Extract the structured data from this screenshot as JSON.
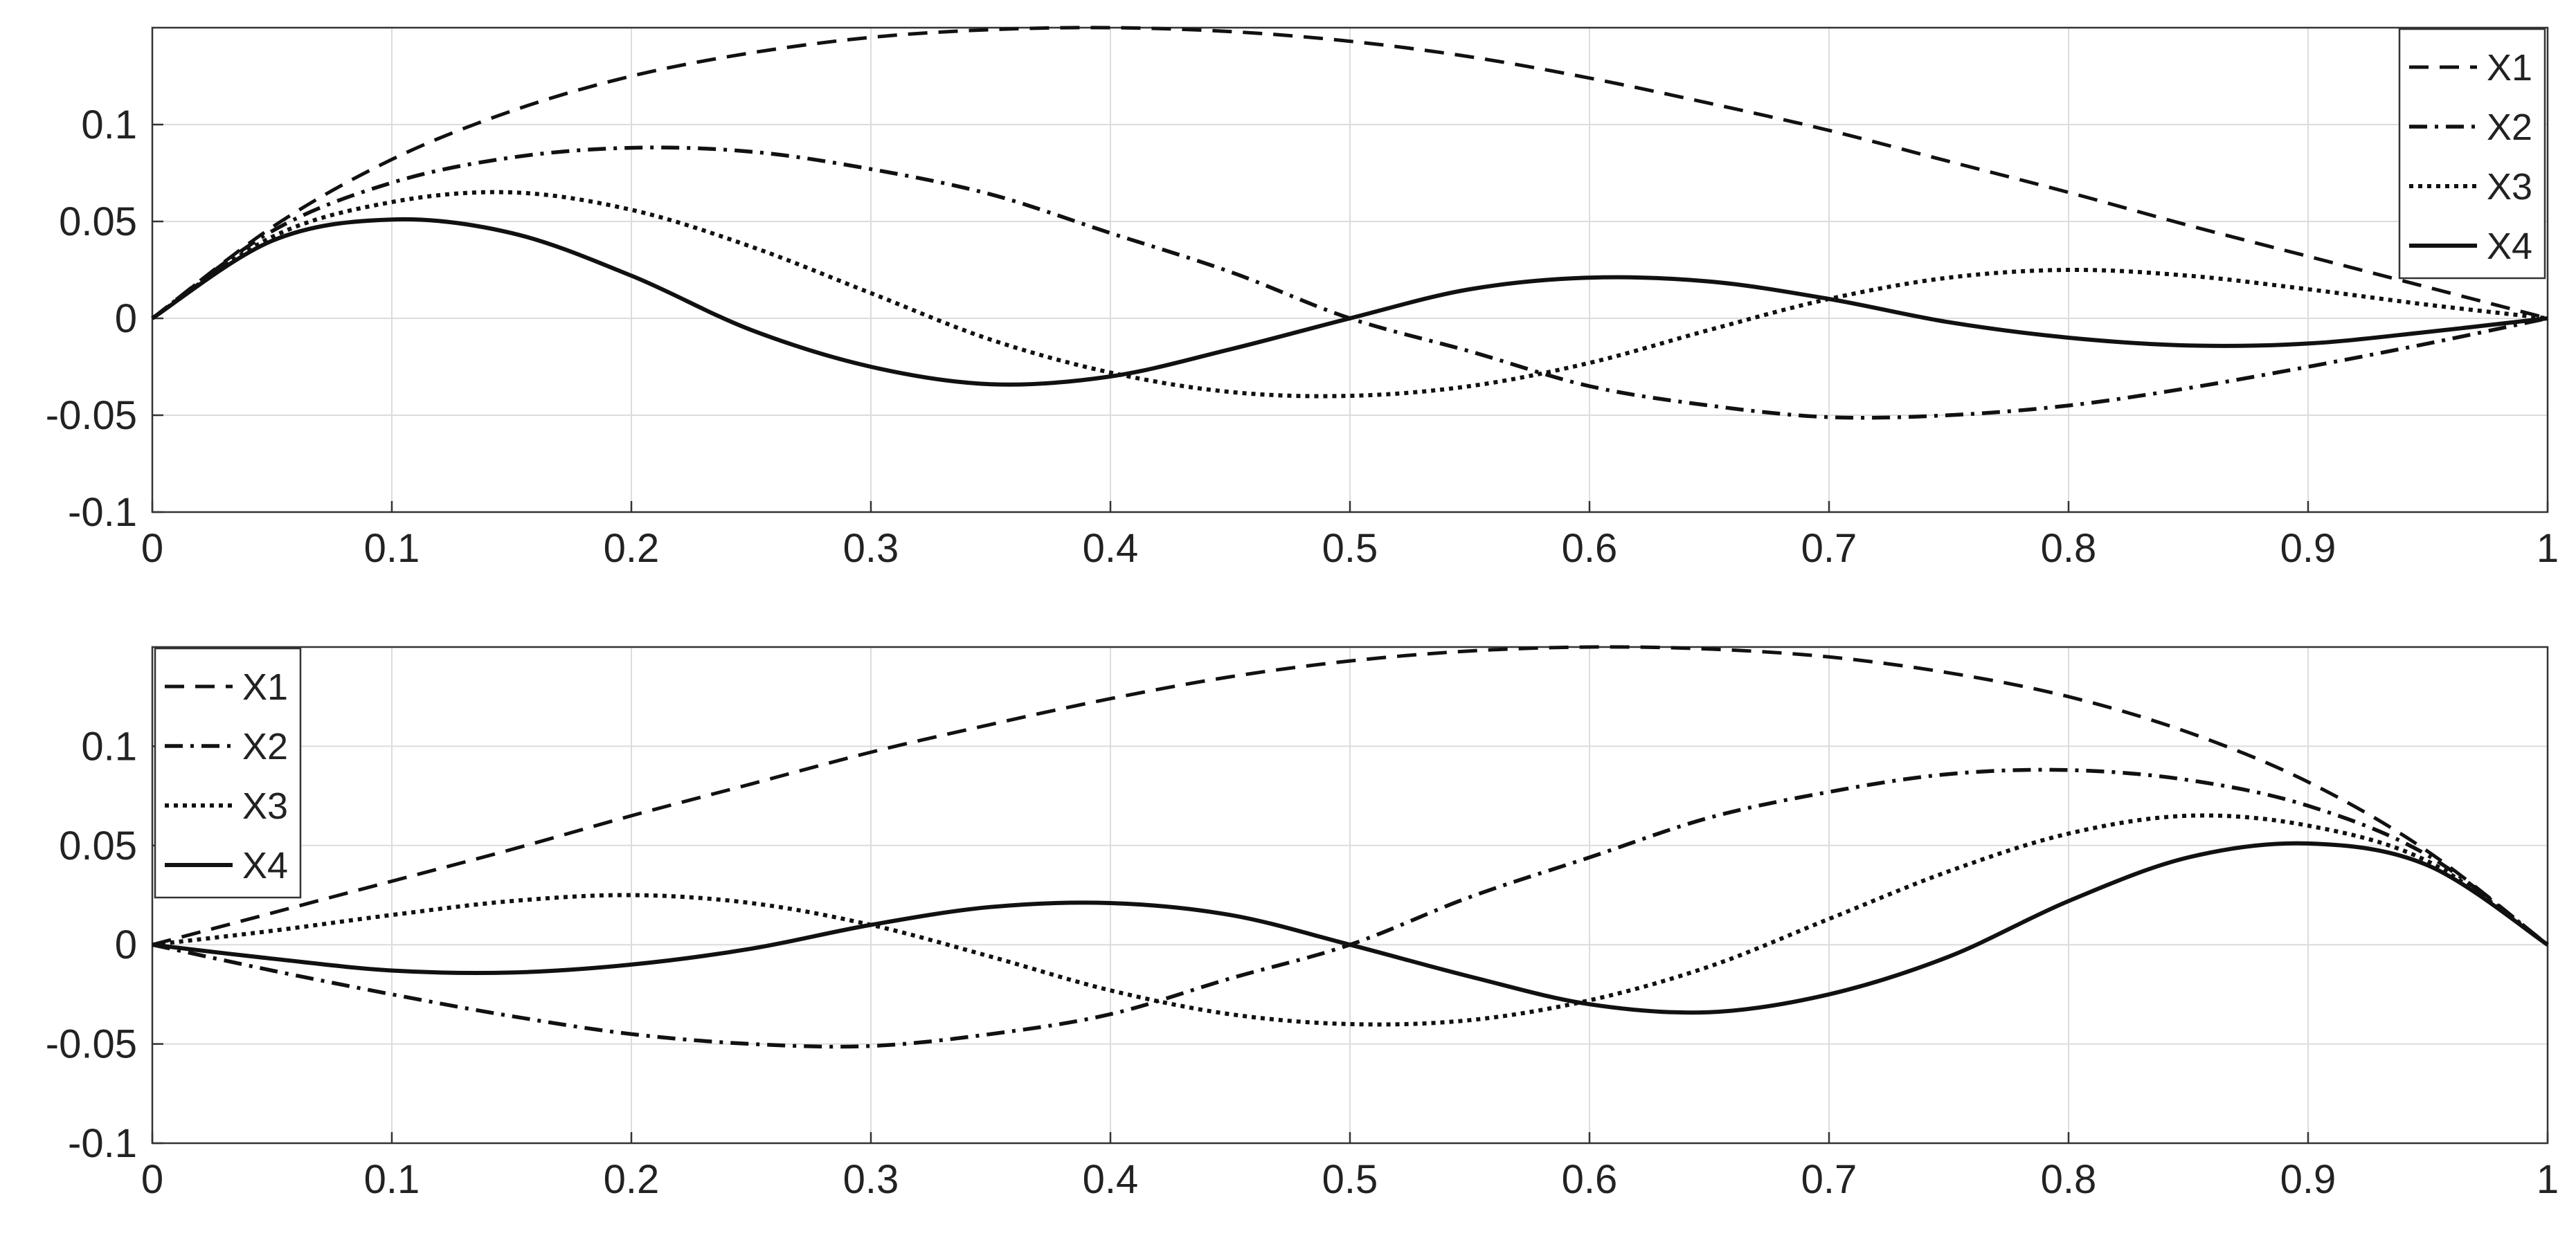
{
  "colors": {
    "line": "#111111",
    "grid": "#dcdcdc",
    "axis": "#333333",
    "background": "#ffffff"
  },
  "chart_data": [
    {
      "type": "line",
      "title": "",
      "xlabel": "",
      "ylabel": "",
      "xlim": [
        0,
        1
      ],
      "ylim": [
        -0.1,
        0.15
      ],
      "grid": true,
      "legend_position": "top-right",
      "x_ticks": [
        "0",
        "0.1",
        "0.2",
        "0.3",
        "0.4",
        "0.5",
        "0.6",
        "0.7",
        "0.8",
        "0.9",
        "1"
      ],
      "y_ticks": [
        "0.1",
        "0.05",
        "0",
        "-0.05",
        "-0.1"
      ],
      "x": [
        0,
        0.05,
        0.1,
        0.15,
        0.2,
        0.25,
        0.3,
        0.35,
        0.4,
        0.45,
        0.5,
        0.55,
        0.6,
        0.65,
        0.7,
        0.75,
        0.8,
        0.85,
        0.9,
        0.95,
        1
      ],
      "series": [
        {
          "name": "X1",
          "style": "dashed",
          "values": [
            0,
            0.047,
            0.082,
            0.107,
            0.125,
            0.137,
            0.145,
            0.149,
            0.15,
            0.148,
            0.143,
            0.135,
            0.124,
            0.111,
            0.097,
            0.081,
            0.065,
            0.048,
            0.032,
            0.016,
            0
          ]
        },
        {
          "name": "X2",
          "style": "dashdot",
          "values": [
            0,
            0.045,
            0.07,
            0.083,
            0.088,
            0.086,
            0.077,
            0.064,
            0.044,
            0.024,
            0,
            -0.017,
            -0.035,
            -0.045,
            -0.051,
            -0.05,
            -0.045,
            -0.036,
            -0.025,
            -0.013,
            0
          ]
        },
        {
          "name": "X3",
          "style": "dotted",
          "values": [
            0,
            0.042,
            0.06,
            0.065,
            0.056,
            0.037,
            0.013,
            -0.011,
            -0.028,
            -0.038,
            -0.04,
            -0.035,
            -0.023,
            -0.006,
            0.01,
            0.021,
            0.025,
            0.022,
            0.015,
            0.007,
            0
          ]
        },
        {
          "name": "X4",
          "style": "solid",
          "values": [
            0,
            0.04,
            0.051,
            0.044,
            0.022,
            -0.006,
            -0.025,
            -0.034,
            -0.03,
            -0.016,
            0,
            0.015,
            0.021,
            0.019,
            0.01,
            -0.002,
            -0.01,
            -0.014,
            -0.013,
            -0.007,
            0
          ]
        }
      ]
    },
    {
      "type": "line",
      "title": "",
      "xlabel": "",
      "ylabel": "",
      "xlim": [
        0,
        1
      ],
      "ylim": [
        -0.1,
        0.15
      ],
      "grid": true,
      "legend_position": "top-left",
      "x_ticks": [
        "0",
        "0.1",
        "0.2",
        "0.3",
        "0.4",
        "0.5",
        "0.6",
        "0.7",
        "0.8",
        "0.9",
        "1"
      ],
      "y_ticks": [
        "0.1",
        "0.05",
        "0",
        "-0.05",
        "-0.1"
      ],
      "x": [
        0,
        0.05,
        0.1,
        0.15,
        0.2,
        0.25,
        0.3,
        0.35,
        0.4,
        0.45,
        0.5,
        0.55,
        0.6,
        0.65,
        0.7,
        0.75,
        0.8,
        0.85,
        0.9,
        0.95,
        1
      ],
      "series": [
        {
          "name": "X1",
          "style": "dashed",
          "values": [
            0,
            0.016,
            0.032,
            0.048,
            0.065,
            0.081,
            0.097,
            0.111,
            0.124,
            0.135,
            0.143,
            0.148,
            0.15,
            0.149,
            0.145,
            0.137,
            0.125,
            0.107,
            0.082,
            0.047,
            0
          ]
        },
        {
          "name": "X2",
          "style": "dashdot",
          "values": [
            0,
            -0.013,
            -0.025,
            -0.036,
            -0.045,
            -0.05,
            -0.051,
            -0.045,
            -0.035,
            -0.017,
            0,
            0.024,
            0.044,
            0.064,
            0.077,
            0.086,
            0.088,
            0.083,
            0.07,
            0.045,
            0
          ]
        },
        {
          "name": "X3",
          "style": "dotted",
          "values": [
            0,
            0.007,
            0.015,
            0.022,
            0.025,
            0.021,
            0.01,
            -0.006,
            -0.023,
            -0.035,
            -0.04,
            -0.038,
            -0.028,
            -0.011,
            0.013,
            0.037,
            0.056,
            0.065,
            0.06,
            0.042,
            0
          ]
        },
        {
          "name": "X4",
          "style": "solid",
          "values": [
            0,
            -0.007,
            -0.013,
            -0.014,
            -0.01,
            -0.002,
            0.01,
            0.019,
            0.021,
            0.015,
            0,
            -0.016,
            -0.03,
            -0.034,
            -0.025,
            -0.006,
            0.022,
            0.044,
            0.051,
            0.04,
            0
          ]
        }
      ]
    }
  ]
}
